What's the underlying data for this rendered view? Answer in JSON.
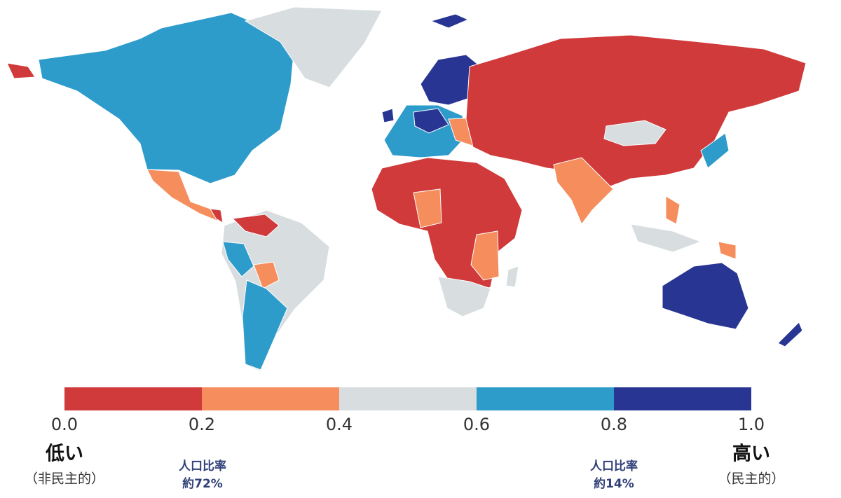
{
  "legend": {
    "colors": [
      "#d03a3a",
      "#f58d5c",
      "#d8dde0",
      "#2e9ccb",
      "#283593"
    ],
    "ticks": [
      {
        "value": 0,
        "label": "0.0"
      },
      {
        "value": 0.2,
        "label": "0.2"
      },
      {
        "value": 0.4,
        "label": "0.4"
      },
      {
        "value": 0.6,
        "label": "0.6"
      },
      {
        "value": 0.8,
        "label": "0.8"
      },
      {
        "value": 1,
        "label": "1.0"
      }
    ]
  },
  "low": {
    "label": "低い",
    "sub": "（非民主的）"
  },
  "high": {
    "label": "高い",
    "sub": "（民主的）"
  },
  "annotations": [
    {
      "title": "人口比率",
      "value": "約72%"
    },
    {
      "title": "人口比率",
      "value": "約14%"
    }
  ]
}
